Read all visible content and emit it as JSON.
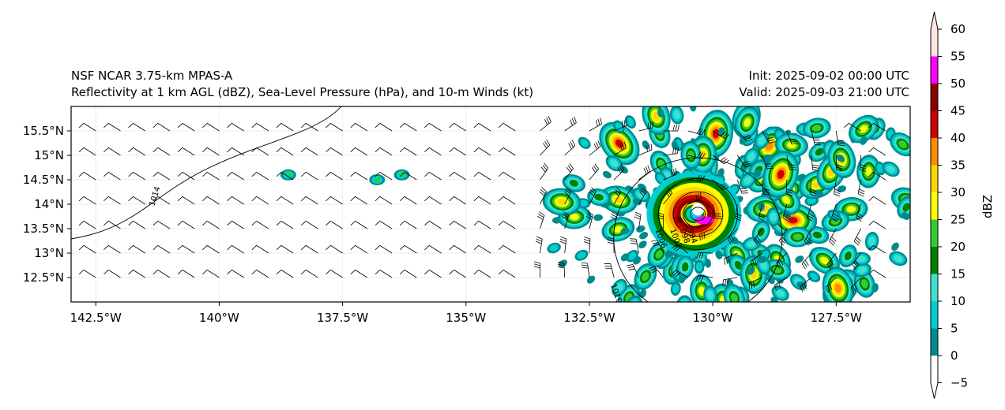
{
  "title_left": [
    "NSF NCAR 3.75-km MPAS-A",
    "Reflectivity at 1 km AGL (dBZ), Sea-Level Pressure (hPa), and 10-m Winds (kt)"
  ],
  "title_right": [
    "Init: 2025-09-02 00:00 UTC",
    "Valid: 2025-09-03 21:00 UTC"
  ],
  "chart_data": {
    "type": "map",
    "lon_range": [
      -143.0,
      -126.0
    ],
    "lat_range": [
      12.0,
      16.0
    ],
    "x_ticks": [
      {
        "v": -142.5,
        "label": "142.5°W"
      },
      {
        "v": -140,
        "label": "140°W"
      },
      {
        "v": -137.5,
        "label": "137.5°W"
      },
      {
        "v": -135,
        "label": "135°W"
      },
      {
        "v": -132.5,
        "label": "132.5°W"
      },
      {
        "v": -130,
        "label": "130°W"
      },
      {
        "v": -127.5,
        "label": "127.5°W"
      }
    ],
    "y_ticks": [
      {
        "v": 15.5,
        "label": "15.5°N"
      },
      {
        "v": 15,
        "label": "15°N"
      },
      {
        "v": 14.5,
        "label": "14.5°N"
      },
      {
        "v": 14,
        "label": "14°N"
      },
      {
        "v": 13.5,
        "label": "13.5°N"
      },
      {
        "v": 13,
        "label": "13°N"
      },
      {
        "v": 12.5,
        "label": "12.5°N"
      }
    ],
    "storm_center": {
      "lon": -130.3,
      "lat": 13.8
    },
    "pressure_contours": [
      {
        "label": "1014",
        "shape": "line"
      },
      {
        "label": "1010",
        "radius_deg": 1.7
      },
      {
        "label": "1006",
        "radius_deg": 0.8
      },
      {
        "label": "1002",
        "radius_deg": 0.5
      },
      {
        "label": "998",
        "radius_deg": 0.3
      },
      {
        "label": "994",
        "radius_deg": 0.15
      }
    ],
    "colorbar": {
      "label": "dBZ",
      "ticks": [
        "60",
        "55",
        "50",
        "45",
        "40",
        "35",
        "30",
        "25",
        "20",
        "15",
        "10",
        "5",
        "0",
        "−5"
      ],
      "levels": [
        -5,
        0,
        5,
        10,
        15,
        20,
        25,
        30,
        35,
        40,
        45,
        50,
        55,
        60
      ],
      "colors": [
        "#ffffff",
        "#008b8b",
        "#00ced1",
        "#40e0d0",
        "#008000",
        "#32cd32",
        "#ffff00",
        "#ffd700",
        "#ff8c00",
        "#cd0000",
        "#8b0000",
        "#ff00ff",
        "#ffe4e1"
      ],
      "extend": "both"
    }
  }
}
